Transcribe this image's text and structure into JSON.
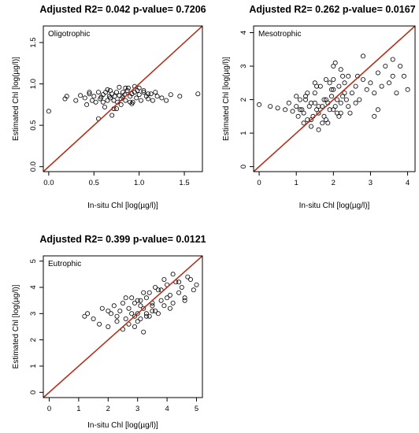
{
  "chart_data": [
    {
      "type": "scatter",
      "title": "Adjusted R2= 0.042 p-value= 0.7206",
      "panel_label": "Oligotrophic",
      "xlabel": "In-situ Chl [log(µg/l)]",
      "ylabel": "Estimated Chl [log(µg/l)]",
      "xlim": [
        -0.06,
        1.7
      ],
      "ylim": [
        -0.06,
        1.7
      ],
      "xticks": [
        "0.0",
        "0.5",
        "1.0",
        "1.5"
      ],
      "yticks": [
        "0.0",
        "0.5",
        "1.0",
        "1.5"
      ],
      "xtick_values": [
        0,
        0.5,
        1.0,
        1.5
      ],
      "ytick_values": [
        0,
        0.5,
        1.0,
        1.5
      ],
      "reference_line": "1:1",
      "series": [
        {
          "x": [
            0.0,
            0.18,
            0.2,
            0.3,
            0.35,
            0.4,
            0.42,
            0.45,
            0.48,
            0.5,
            0.52,
            0.55,
            0.57,
            0.6,
            0.62,
            0.63,
            0.65,
            0.67,
            0.68,
            0.7,
            0.72,
            0.73,
            0.75,
            0.76,
            0.78,
            0.8,
            0.82,
            0.84,
            0.85,
            0.87,
            0.9,
            0.92,
            0.93,
            0.95,
            0.97,
            1.0,
            1.02,
            1.05,
            1.08,
            1.1,
            1.13,
            1.15,
            1.2,
            1.25,
            1.3,
            1.35,
            1.45,
            1.65,
            0.55,
            0.7,
            0.75,
            0.8,
            0.88,
            0.95,
            1.05,
            0.6,
            0.9,
            1.0,
            0.65,
            0.85,
            0.72,
            1.18,
            0.45,
            0.68,
            0.78,
            0.98,
            1.1,
            0.58,
            0.82,
            0.92
          ],
          "y": [
            0.67,
            0.82,
            0.85,
            0.8,
            0.86,
            0.83,
            0.75,
            0.88,
            0.8,
            0.85,
            0.78,
            0.9,
            0.82,
            0.87,
            0.72,
            0.9,
            0.8,
            0.85,
            0.92,
            0.88,
            0.8,
            0.85,
            0.9,
            0.78,
            0.86,
            0.82,
            0.9,
            0.87,
            0.8,
            0.92,
            0.85,
            0.88,
            0.78,
            0.9,
            0.83,
            0.87,
            0.8,
            0.9,
            0.85,
            0.82,
            0.88,
            0.8,
            0.85,
            0.83,
            0.8,
            0.87,
            0.85,
            0.88,
            0.58,
            0.62,
            0.7,
            0.75,
            0.95,
            0.97,
            0.92,
            0.78,
            0.78,
            0.95,
            0.93,
            0.95,
            0.7,
            0.9,
            0.9,
            0.83,
            0.96,
            0.92,
            0.88,
            0.84,
            0.84,
            0.76
          ]
        }
      ]
    },
    {
      "type": "scatter",
      "title": "Adjusted R2= 0.262 p-value= 0.0167",
      "panel_label": "Mesotrophic",
      "xlabel": "In-situ Chl [log(µg/l)]",
      "ylabel": "Estimated Chl [log(µg/l)]",
      "xlim": [
        -0.15,
        4.2
      ],
      "ylim": [
        -0.15,
        4.2
      ],
      "xticks": [
        "0",
        "1",
        "2",
        "3",
        "4"
      ],
      "yticks": [
        "0",
        "1",
        "2",
        "3",
        "4"
      ],
      "xtick_values": [
        0,
        1,
        2,
        3,
        4
      ],
      "ytick_values": [
        0,
        1,
        2,
        3,
        4
      ],
      "reference_line": "1:1",
      "series": [
        {
          "x": [
            0.0,
            0.3,
            0.5,
            0.7,
            0.8,
            0.9,
            1.0,
            1.05,
            1.1,
            1.15,
            1.2,
            1.25,
            1.3,
            1.35,
            1.4,
            1.45,
            1.5,
            1.55,
            1.6,
            1.65,
            1.7,
            1.75,
            1.8,
            1.85,
            1.9,
            1.95,
            2.0,
            2.05,
            2.1,
            2.15,
            2.2,
            2.25,
            2.3,
            2.35,
            2.4,
            2.5,
            2.6,
            2.7,
            2.8,
            2.9,
            3.0,
            3.1,
            3.2,
            3.3,
            3.4,
            3.5,
            3.6,
            3.7,
            3.8,
            4.0,
            1.0,
            1.2,
            1.4,
            1.6,
            1.8,
            2.0,
            2.2,
            2.4,
            1.1,
            1.3,
            1.5,
            1.7,
            1.9,
            2.1,
            2.3,
            1.6,
            1.8,
            2.0,
            2.2,
            1.4,
            2.6,
            2.8,
            3.2,
            3.6,
            1.75,
            1.95,
            2.15,
            1.25,
            1.55,
            1.85,
            2.05,
            2.25,
            2.45,
            2.65,
            2.0,
            1.5,
            3.1,
            3.9
          ],
          "y": [
            1.85,
            1.8,
            1.75,
            1.7,
            1.9,
            1.65,
            1.8,
            1.5,
            2.0,
            1.7,
            1.6,
            2.1,
            1.4,
            1.8,
            1.9,
            1.5,
            2.2,
            1.7,
            1.6,
            2.4,
            1.8,
            1.5,
            2.0,
            1.9,
            1.7,
            2.1,
            2.3,
            1.8,
            2.0,
            2.4,
            1.9,
            2.1,
            2.5,
            2.0,
            1.8,
            2.2,
            2.4,
            2.0,
            2.6,
            2.3,
            2.5,
            2.2,
            2.8,
            2.4,
            3.0,
            2.5,
            2.7,
            2.2,
            3.0,
            2.3,
            2.1,
            1.3,
            1.2,
            1.1,
            2.6,
            2.6,
            1.6,
            2.7,
            1.7,
            2.2,
            1.9,
            1.3,
            2.5,
            1.6,
            2.2,
            1.8,
            1.4,
            1.7,
            2.9,
            1.4,
            1.9,
            3.3,
            1.7,
            3.2,
            2.0,
            2.3,
            1.5,
            2.0,
            2.4,
            1.3,
            3.1,
            2.7,
            1.6,
            2.7,
            3.0,
            2.5,
            1.5,
            2.7
          ]
        }
      ]
    },
    {
      "type": "scatter",
      "title": "Adjusted R2= 0.399 p-value= 0.0121",
      "panel_label": "Eutrophic",
      "xlabel": "In-situ Chl [log(µg/l)]",
      "ylabel": "Estimated Chl [log(µg/l)]",
      "xlim": [
        -0.2,
        5.2
      ],
      "ylim": [
        -0.2,
        5.2
      ],
      "xticks": [
        "0",
        "1",
        "2",
        "3",
        "4",
        "5"
      ],
      "yticks": [
        "0",
        "1",
        "2",
        "3",
        "4",
        "5"
      ],
      "xtick_values": [
        0,
        1,
        2,
        3,
        4,
        5
      ],
      "ytick_values": [
        0,
        1,
        2,
        3,
        4,
        5
      ],
      "reference_line": "1:1",
      "series": [
        {
          "x": [
            1.2,
            1.3,
            1.5,
            1.7,
            1.8,
            2.0,
            2.1,
            2.2,
            2.3,
            2.4,
            2.5,
            2.6,
            2.7,
            2.8,
            2.9,
            3.0,
            3.1,
            3.2,
            3.3,
            3.4,
            3.5,
            3.6,
            3.7,
            3.8,
            3.9,
            4.0,
            4.1,
            4.2,
            4.3,
            4.4,
            4.5,
            4.6,
            4.7,
            4.8,
            4.9,
            5.0,
            2.5,
            2.7,
            2.9,
            3.1,
            3.3,
            3.5,
            3.7,
            3.9,
            4.1,
            2.6,
            2.8,
            3.0,
            3.2,
            3.4,
            3.6,
            3.8,
            4.0,
            2.9,
            3.1,
            3.3,
            3.5,
            4.4,
            4.6,
            4.2,
            2.3,
            2.0,
            3.0,
            3.2
          ],
          "y": [
            2.9,
            3.0,
            2.8,
            2.6,
            3.2,
            2.5,
            3.0,
            3.3,
            2.7,
            3.1,
            3.4,
            2.8,
            3.2,
            3.6,
            2.9,
            3.0,
            3.5,
            3.2,
            2.9,
            3.8,
            3.4,
            3.1,
            3.9,
            3.5,
            3.3,
            4.1,
            3.7,
            3.4,
            4.2,
            3.8,
            4.0,
            3.6,
            4.4,
            4.3,
            3.9,
            4.1,
            2.4,
            2.6,
            2.5,
            2.8,
            3.0,
            3.3,
            3.0,
            4.3,
            3.2,
            3.6,
            3.0,
            2.7,
            3.8,
            2.9,
            4.0,
            3.9,
            3.6,
            3.4,
            3.3,
            3.6,
            3.1,
            4.2,
            3.5,
            4.5,
            2.9,
            3.1,
            3.5,
            2.3
          ]
        }
      ]
    }
  ]
}
